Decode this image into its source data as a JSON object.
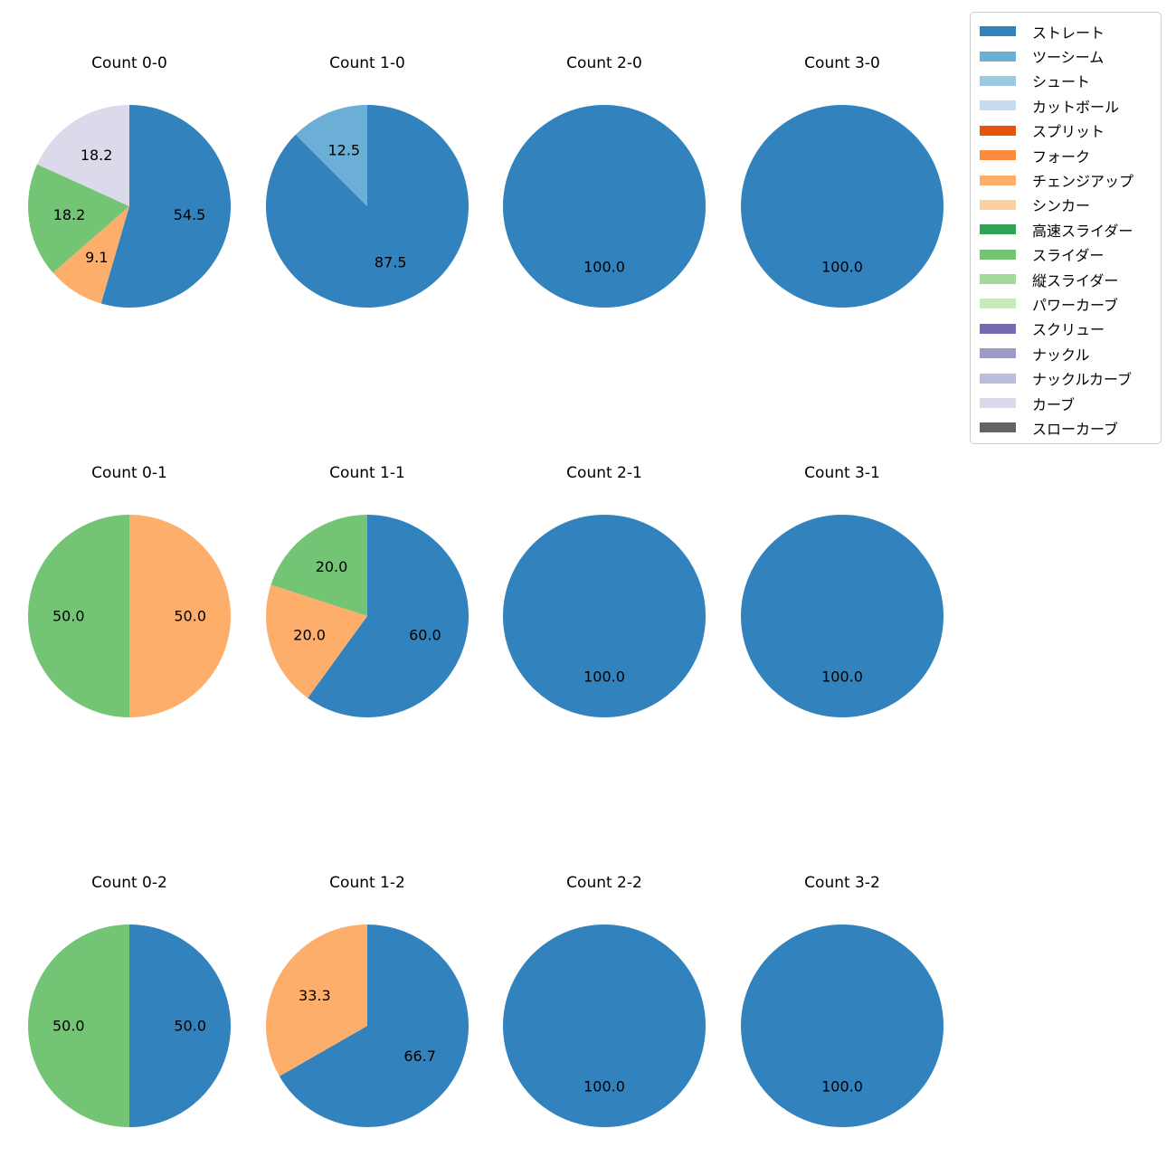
{
  "figure": {
    "background": "#ffffff",
    "text_color": "#000000"
  },
  "legend": {
    "position": "top-right",
    "items": [
      {
        "label": "ストレート",
        "color": "#3182bd"
      },
      {
        "label": "ツーシーム",
        "color": "#6baed6"
      },
      {
        "label": "シュート",
        "color": "#9ecae1"
      },
      {
        "label": "カットボール",
        "color": "#c6dbef"
      },
      {
        "label": "スプリット",
        "color": "#e6550d"
      },
      {
        "label": "フォーク",
        "color": "#fd8d3c"
      },
      {
        "label": "チェンジアップ",
        "color": "#fdae6b"
      },
      {
        "label": "シンカー",
        "color": "#fdd0a2"
      },
      {
        "label": "高速スライダー",
        "color": "#31a354"
      },
      {
        "label": "スライダー",
        "color": "#74c476"
      },
      {
        "label": "縦スライダー",
        "color": "#a1d99b"
      },
      {
        "label": "パワーカーブ",
        "color": "#c7e9c0"
      },
      {
        "label": "スクリュー",
        "color": "#756bb1"
      },
      {
        "label": "ナックル",
        "color": "#9e9ac8"
      },
      {
        "label": "ナックルカーブ",
        "color": "#bcbddc"
      },
      {
        "label": "カーブ",
        "color": "#dadaeb"
      },
      {
        "label": "スローカーブ",
        "color": "#636363"
      }
    ]
  },
  "chart_data": [
    {
      "type": "pie",
      "title": "Count 0-0",
      "start_angle": 90,
      "direction": "clockwise",
      "label_format": "%.1f",
      "label_radius": 0.6,
      "slices": [
        {
          "label": "ストレート",
          "value": 54.5,
          "color": "#3182bd"
        },
        {
          "label": "チェンジアップ",
          "value": 9.1,
          "color": "#fdae6b"
        },
        {
          "label": "スライダー",
          "value": 18.2,
          "color": "#74c476"
        },
        {
          "label": "カーブ",
          "value": 18.2,
          "color": "#dadaeb"
        }
      ]
    },
    {
      "type": "pie",
      "title": "Count 1-0",
      "start_angle": 90,
      "direction": "clockwise",
      "label_format": "%.1f",
      "label_radius": 0.6,
      "slices": [
        {
          "label": "ストレート",
          "value": 87.5,
          "color": "#3182bd"
        },
        {
          "label": "ツーシーム",
          "value": 12.5,
          "color": "#6baed6"
        }
      ]
    },
    {
      "type": "pie",
      "title": "Count 2-0",
      "start_angle": 90,
      "direction": "clockwise",
      "label_format": "%.1f",
      "label_radius": 0.6,
      "slices": [
        {
          "label": "ストレート",
          "value": 100.0,
          "color": "#3182bd"
        }
      ]
    },
    {
      "type": "pie",
      "title": "Count 3-0",
      "start_angle": 90,
      "direction": "clockwise",
      "label_format": "%.1f",
      "label_radius": 0.6,
      "slices": [
        {
          "label": "ストレート",
          "value": 100.0,
          "color": "#3182bd"
        }
      ]
    },
    {
      "type": "pie",
      "title": "Count 0-1",
      "start_angle": 90,
      "direction": "clockwise",
      "label_format": "%.1f",
      "label_radius": 0.6,
      "slices": [
        {
          "label": "チェンジアップ",
          "value": 50.0,
          "color": "#fdae6b"
        },
        {
          "label": "スライダー",
          "value": 50.0,
          "color": "#74c476"
        }
      ]
    },
    {
      "type": "pie",
      "title": "Count 1-1",
      "start_angle": 90,
      "direction": "clockwise",
      "label_format": "%.1f",
      "label_radius": 0.6,
      "slices": [
        {
          "label": "ストレート",
          "value": 60.0,
          "color": "#3182bd"
        },
        {
          "label": "チェンジアップ",
          "value": 20.0,
          "color": "#fdae6b"
        },
        {
          "label": "スライダー",
          "value": 20.0,
          "color": "#74c476"
        }
      ]
    },
    {
      "type": "pie",
      "title": "Count 2-1",
      "start_angle": 90,
      "direction": "clockwise",
      "label_format": "%.1f",
      "label_radius": 0.6,
      "slices": [
        {
          "label": "ストレート",
          "value": 100.0,
          "color": "#3182bd"
        }
      ]
    },
    {
      "type": "pie",
      "title": "Count 3-1",
      "start_angle": 90,
      "direction": "clockwise",
      "label_format": "%.1f",
      "label_radius": 0.6,
      "slices": [
        {
          "label": "ストレート",
          "value": 100.0,
          "color": "#3182bd"
        }
      ]
    },
    {
      "type": "pie",
      "title": "Count 0-2",
      "start_angle": 90,
      "direction": "clockwise",
      "label_format": "%.1f",
      "label_radius": 0.6,
      "slices": [
        {
          "label": "ストレート",
          "value": 50.0,
          "color": "#3182bd"
        },
        {
          "label": "スライダー",
          "value": 50.0,
          "color": "#74c476"
        }
      ]
    },
    {
      "type": "pie",
      "title": "Count 1-2",
      "start_angle": 90,
      "direction": "clockwise",
      "label_format": "%.1f",
      "label_radius": 0.6,
      "slices": [
        {
          "label": "ストレート",
          "value": 66.7,
          "color": "#3182bd"
        },
        {
          "label": "チェンジアップ",
          "value": 33.3,
          "color": "#fdae6b"
        }
      ]
    },
    {
      "type": "pie",
      "title": "Count 2-2",
      "start_angle": 90,
      "direction": "clockwise",
      "label_format": "%.1f",
      "label_radius": 0.6,
      "slices": [
        {
          "label": "ストレート",
          "value": 100.0,
          "color": "#3182bd"
        }
      ]
    },
    {
      "type": "pie",
      "title": "Count 3-2",
      "start_angle": 90,
      "direction": "clockwise",
      "label_format": "%.1f",
      "label_radius": 0.6,
      "slices": [
        {
          "label": "ストレート",
          "value": 100.0,
          "color": "#3182bd"
        }
      ]
    }
  ]
}
